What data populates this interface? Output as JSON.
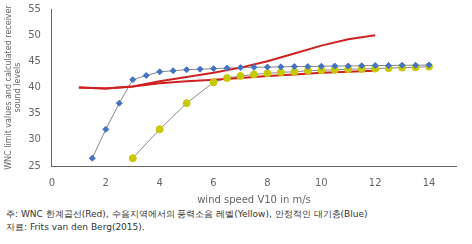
{
  "chart_data": {
    "type": "line",
    "x_label": "wind speed V10 in m/s",
    "y_label": "WNC limit values and calculated receiver\nsound levels",
    "annotations": [
      "주: WNC 한계곱선(Red), 수음지역에서의 풍력소음 레벨(Yellow), 안정적인 대기층(Blue)",
      "자료: Frits van den Berg(2015)."
    ],
    "xlim": [
      0,
      15
    ],
    "ylim": [
      25,
      55
    ],
    "xticks": [
      0,
      2,
      4,
      6,
      8,
      10,
      12,
      14
    ],
    "yticks": [
      25,
      30,
      35,
      40,
      45,
      50,
      55
    ],
    "grid": false,
    "series": [
      {
        "color": "#cc2222",
        "marker": "none",
        "line_style": "solid",
        "x": [
          1,
          2,
          3,
          4,
          5,
          6,
          7,
          8,
          9,
          10,
          11,
          12
        ],
        "values": [
          40.0,
          39.8,
          40.2,
          41.2,
          42.0,
          42.8,
          43.8,
          45.0,
          46.5,
          48.0,
          49.2,
          50.0
        ]
      },
      {
        "color": "#cc2222",
        "marker": "none",
        "line_style": "solid",
        "x": [
          1,
          2,
          3,
          4,
          5,
          6,
          7,
          8,
          9,
          10,
          11,
          12
        ],
        "values": [
          40.0,
          39.8,
          40.2,
          40.8,
          41.2,
          41.5,
          41.8,
          42.2,
          42.5,
          42.8,
          43.0,
          43.2
        ]
      },
      {
        "color": "#888888",
        "marker": "none",
        "line_style": "solid",
        "x": [
          1.5,
          2.0,
          2.5,
          3.0,
          3.5,
          4.0,
          4.5,
          5.0,
          5.5,
          6.0,
          6.5,
          7.0,
          7.5,
          8.0,
          8.5,
          9.0,
          9.5,
          10.0,
          10.5,
          11.0,
          11.5,
          12.0,
          12.5,
          13.0,
          13.5,
          14.0
        ],
        "values": [
          26.5,
          32.0,
          37.0,
          41.5,
          42.3,
          43.0,
          43.2,
          43.4,
          43.5,
          43.6,
          43.7,
          43.8,
          43.85,
          43.9,
          43.95,
          44.0,
          44.0,
          44.05,
          44.1,
          44.1,
          44.15,
          44.2,
          44.2,
          44.25,
          44.25,
          44.3
        ]
      },
      {
        "color": "#4472c4",
        "marker": "diamond",
        "line_style": "none",
        "x": [
          1.5,
          2.0,
          2.5,
          3.0,
          3.5,
          4.0,
          4.5,
          5.0,
          5.5,
          6.0,
          6.5,
          7.0,
          7.5,
          8.0,
          8.5,
          9.0,
          9.5,
          10.0,
          10.5,
          11.0,
          11.5,
          12.0,
          12.5,
          13.0,
          13.5,
          14.0
        ],
        "values": [
          26.5,
          32.0,
          37.0,
          41.5,
          42.3,
          43.0,
          43.2,
          43.4,
          43.5,
          43.6,
          43.7,
          43.8,
          43.85,
          43.9,
          43.95,
          44.0,
          44.0,
          44.05,
          44.1,
          44.1,
          44.15,
          44.2,
          44.2,
          44.25,
          44.25,
          44.3
        ]
      },
      {
        "color": "#888888",
        "marker": "none",
        "line_style": "solid",
        "x": [
          3.0,
          4.0,
          5.0,
          6.0,
          6.5,
          7.0,
          7.5,
          8.0,
          8.5,
          9.0,
          9.5,
          10.0,
          10.5,
          11.0,
          11.5,
          12.0,
          12.5,
          13.0,
          13.5,
          14.0
        ],
        "values": [
          26.5,
          32.0,
          37.0,
          41.0,
          41.8,
          42.2,
          42.5,
          42.7,
          42.9,
          43.0,
          43.2,
          43.3,
          43.4,
          43.5,
          43.55,
          43.6,
          43.7,
          43.8,
          43.85,
          44.0
        ]
      },
      {
        "color": "#c8c800",
        "marker": "circle",
        "line_style": "none",
        "x": [
          3.0,
          4.0,
          5.0,
          6.0,
          6.5,
          7.0,
          7.5,
          8.0,
          8.5,
          9.0,
          9.5,
          10.0,
          10.5,
          11.0,
          11.5,
          12.0,
          12.5,
          13.0,
          13.5,
          14.0
        ],
        "values": [
          26.5,
          32.0,
          37.0,
          41.0,
          41.8,
          42.2,
          42.5,
          42.7,
          42.9,
          43.0,
          43.2,
          43.3,
          43.4,
          43.5,
          43.55,
          43.6,
          43.7,
          43.8,
          43.85,
          44.0
        ]
      }
    ]
  }
}
